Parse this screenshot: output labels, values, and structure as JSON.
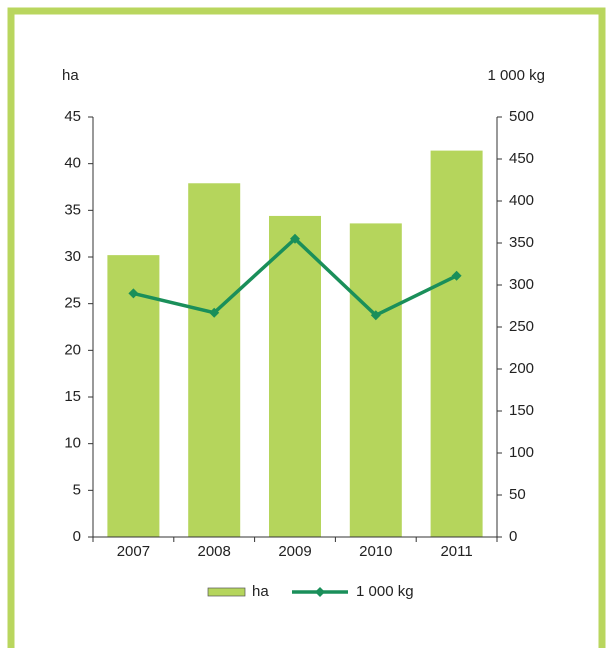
{
  "chart_data": {
    "type": "bar_line",
    "y_label": "ha",
    "y2_label": "1 000 kg",
    "categories": [
      "2007",
      "2008",
      "2009",
      "2010",
      "2011"
    ],
    "series": [
      {
        "name": "ha",
        "type": "bar",
        "color": "#b5d55c",
        "values": [
          30.2,
          37.9,
          34.4,
          33.6,
          41.4
        ]
      },
      {
        "name": "1 000 kg",
        "type": "line",
        "axis": "y2",
        "color": "#1a8f5a",
        "values": [
          290,
          267,
          355,
          264,
          311
        ]
      }
    ],
    "ylim": [
      0,
      45
    ],
    "yticks": [
      0,
      5,
      10,
      15,
      20,
      25,
      30,
      35,
      40,
      45
    ],
    "y2lim": [
      0,
      500
    ],
    "y2ticks": [
      0,
      50,
      100,
      150,
      200,
      250,
      300,
      350,
      400,
      450,
      500
    ]
  }
}
